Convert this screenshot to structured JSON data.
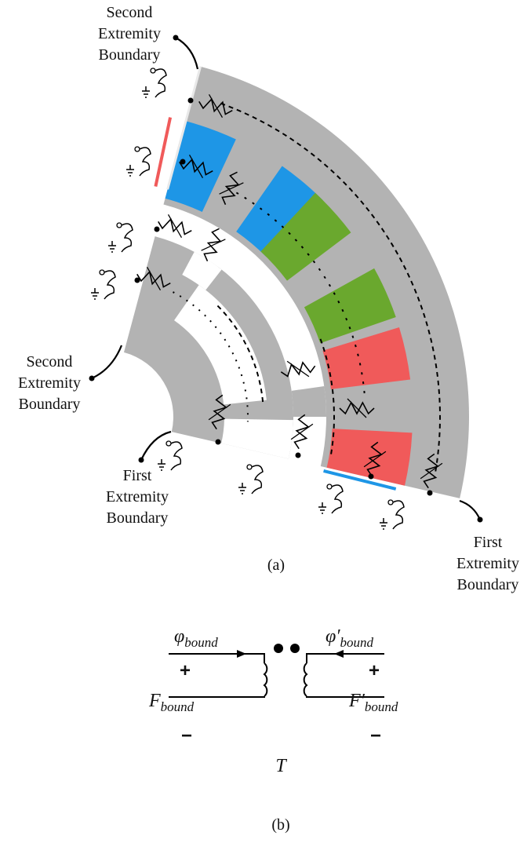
{
  "figure_a": {
    "boundary_labels": [
      {
        "lines": [
          "Second",
          "Extremity",
          "Boundary"
        ]
      },
      {
        "lines": [
          "Second",
          "Extremity",
          "Boundary"
        ]
      },
      {
        "lines": [
          "First",
          "Extremity",
          "Boundary"
        ]
      },
      {
        "lines": [
          "First",
          "Extremity",
          "Boundary"
        ]
      }
    ],
    "caption": "(a)"
  },
  "figure_b": {
    "flux_left": {
      "symbol": "φ",
      "subscript": "bound"
    },
    "flux_right": {
      "symbol": "φ′",
      "subscript": "bound"
    },
    "mmf_left": {
      "symbol": "F",
      "subscript": "bound"
    },
    "mmf_right": {
      "symbol": "F′",
      "subscript": "bound"
    },
    "plus_left": "+",
    "plus_right": "+",
    "minus_left": "−",
    "minus_right": "−",
    "transformer": "T",
    "caption": "(b)"
  }
}
